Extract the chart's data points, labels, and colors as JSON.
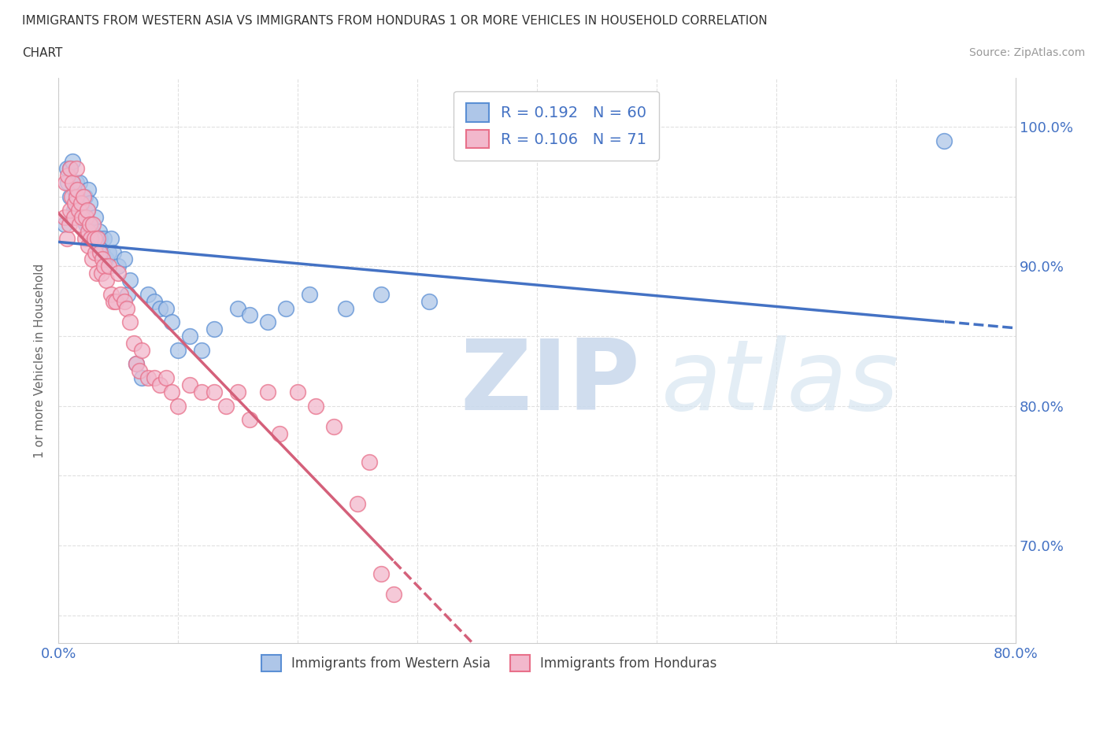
{
  "title_line1": "IMMIGRANTS FROM WESTERN ASIA VS IMMIGRANTS FROM HONDURAS 1 OR MORE VEHICLES IN HOUSEHOLD CORRELATION",
  "title_line2": "CHART",
  "source_text": "Source: ZipAtlas.com",
  "ylabel": "1 or more Vehicles in Household",
  "xlim": [
    0.0,
    0.8
  ],
  "ylim": [
    0.63,
    1.035
  ],
  "xtick_positions": [
    0.0,
    0.1,
    0.2,
    0.3,
    0.4,
    0.5,
    0.6,
    0.7,
    0.8
  ],
  "xtick_labels": [
    "0.0%",
    "",
    "",
    "",
    "",
    "",
    "",
    "",
    "80.0%"
  ],
  "right_ytick_labels": [
    "100.0%",
    "90.0%",
    "80.0%",
    "70.0%"
  ],
  "right_ytick_positions": [
    1.0,
    0.9,
    0.8,
    0.7
  ],
  "blue_label": "Immigrants from Western Asia",
  "pink_label": "Immigrants from Honduras",
  "blue_R": 0.192,
  "blue_N": 60,
  "pink_R": 0.106,
  "pink_N": 71,
  "blue_color": "#aec6e8",
  "pink_color": "#f2b8cc",
  "blue_edge_color": "#5b8fd4",
  "pink_edge_color": "#e8708a",
  "blue_line_color": "#4472c4",
  "pink_line_color": "#d4607a",
  "blue_scatter_x": [
    0.005,
    0.007,
    0.008,
    0.01,
    0.01,
    0.012,
    0.012,
    0.013,
    0.014,
    0.015,
    0.015,
    0.016,
    0.017,
    0.018,
    0.019,
    0.02,
    0.021,
    0.022,
    0.023,
    0.024,
    0.025,
    0.025,
    0.026,
    0.027,
    0.028,
    0.03,
    0.031,
    0.033,
    0.034,
    0.035,
    0.037,
    0.038,
    0.04,
    0.042,
    0.044,
    0.046,
    0.05,
    0.055,
    0.058,
    0.06,
    0.065,
    0.07,
    0.075,
    0.08,
    0.085,
    0.09,
    0.095,
    0.1,
    0.11,
    0.12,
    0.13,
    0.15,
    0.16,
    0.175,
    0.19,
    0.21,
    0.24,
    0.27,
    0.31,
    0.74
  ],
  "blue_scatter_y": [
    0.93,
    0.97,
    0.96,
    0.97,
    0.95,
    0.96,
    0.975,
    0.94,
    0.955,
    0.96,
    0.94,
    0.95,
    0.94,
    0.96,
    0.935,
    0.945,
    0.935,
    0.95,
    0.93,
    0.94,
    0.93,
    0.955,
    0.945,
    0.93,
    0.925,
    0.92,
    0.935,
    0.915,
    0.925,
    0.92,
    0.91,
    0.92,
    0.905,
    0.91,
    0.92,
    0.91,
    0.9,
    0.905,
    0.88,
    0.89,
    0.83,
    0.82,
    0.88,
    0.875,
    0.87,
    0.87,
    0.86,
    0.84,
    0.85,
    0.84,
    0.855,
    0.87,
    0.865,
    0.86,
    0.87,
    0.88,
    0.87,
    0.88,
    0.875,
    0.99
  ],
  "pink_scatter_x": [
    0.005,
    0.006,
    0.007,
    0.008,
    0.009,
    0.01,
    0.01,
    0.011,
    0.012,
    0.013,
    0.014,
    0.015,
    0.015,
    0.016,
    0.017,
    0.018,
    0.019,
    0.02,
    0.021,
    0.022,
    0.023,
    0.024,
    0.025,
    0.025,
    0.026,
    0.027,
    0.028,
    0.029,
    0.03,
    0.031,
    0.032,
    0.033,
    0.035,
    0.036,
    0.037,
    0.038,
    0.04,
    0.042,
    0.044,
    0.046,
    0.048,
    0.05,
    0.052,
    0.055,
    0.057,
    0.06,
    0.063,
    0.065,
    0.068,
    0.07,
    0.075,
    0.08,
    0.085,
    0.09,
    0.095,
    0.1,
    0.11,
    0.12,
    0.13,
    0.14,
    0.15,
    0.16,
    0.175,
    0.185,
    0.2,
    0.215,
    0.23,
    0.25,
    0.26,
    0.27,
    0.28
  ],
  "pink_scatter_y": [
    0.935,
    0.96,
    0.92,
    0.965,
    0.93,
    0.97,
    0.94,
    0.95,
    0.96,
    0.935,
    0.945,
    0.97,
    0.95,
    0.955,
    0.94,
    0.93,
    0.945,
    0.935,
    0.95,
    0.92,
    0.935,
    0.94,
    0.925,
    0.915,
    0.93,
    0.92,
    0.905,
    0.93,
    0.92,
    0.91,
    0.895,
    0.92,
    0.91,
    0.895,
    0.905,
    0.9,
    0.89,
    0.9,
    0.88,
    0.875,
    0.875,
    0.895,
    0.88,
    0.875,
    0.87,
    0.86,
    0.845,
    0.83,
    0.825,
    0.84,
    0.82,
    0.82,
    0.815,
    0.82,
    0.81,
    0.8,
    0.815,
    0.81,
    0.81,
    0.8,
    0.81,
    0.79,
    0.81,
    0.78,
    0.81,
    0.8,
    0.785,
    0.73,
    0.76,
    0.68,
    0.665
  ]
}
